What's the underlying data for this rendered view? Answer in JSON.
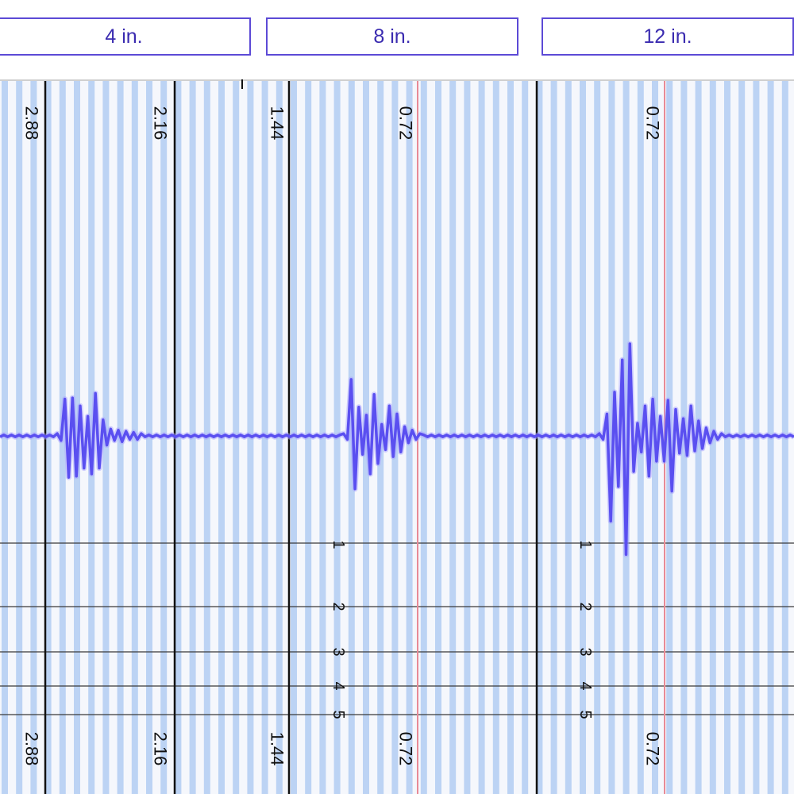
{
  "tabs": [
    {
      "label": "4 in."
    },
    {
      "label": "8 in."
    },
    {
      "label": "12 in."
    }
  ],
  "colors": {
    "tab_border": "#5c4ad6",
    "tab_text": "#3a2bb0",
    "stripe_blue": "#bcd3f4",
    "stripe_white": "#f5f7fc",
    "trace": "#5a4ff0",
    "frame_line": "#111111",
    "red_marker": "#e88a96"
  },
  "chart_data": {
    "type": "line",
    "title": "",
    "xlabel": "",
    "ylabel": "",
    "top_scale_labels": [
      "2.88",
      "2.16",
      "1.44",
      "0.72",
      "0.72"
    ],
    "bottom_scale_labels": [
      "2.88",
      "2.16",
      "1.44",
      "0.72",
      "0.72"
    ],
    "row_labels": [
      {
        "panel": 1,
        "labels": [
          "1",
          "2",
          "3",
          "4",
          "5"
        ]
      },
      {
        "panel": 2,
        "labels": [
          "1",
          "2",
          "3",
          "4",
          "5"
        ]
      }
    ],
    "series": [
      {
        "y": [
          0,
          0,
          0,
          0,
          0,
          0,
          0,
          0,
          0,
          0,
          0,
          0,
          0,
          0,
          0,
          0.2,
          -0.4,
          3.2,
          -3.6,
          3.3,
          -3.5,
          2.6,
          -2.8,
          1.7,
          -3.3,
          3.7,
          -2.8,
          1.4,
          -0.8,
          0.6,
          -0.4,
          0.5,
          -0.5,
          0.4,
          -0.3,
          0.3,
          -0.3,
          0.2,
          0,
          0,
          0,
          0,
          0,
          0,
          0,
          0,
          0,
          0,
          0,
          0,
          0,
          0,
          0,
          0,
          0,
          0,
          0,
          0,
          0,
          0,
          0,
          0,
          0,
          0,
          0,
          0,
          0,
          0,
          0,
          0,
          0,
          0,
          0,
          0,
          0,
          0,
          0,
          0,
          0,
          0,
          0,
          0,
          0,
          0,
          0,
          0,
          0,
          0,
          0,
          0,
          0.2,
          -0.3,
          4.9,
          -4.6,
          2.5,
          -1.6,
          1.8,
          -3.3,
          3.6,
          -2.4,
          1.0,
          -1.2,
          2.6,
          -1.8,
          1.9,
          -1.4,
          0.8,
          -0.6,
          0.5,
          -0.3,
          0.2,
          0,
          0,
          0,
          0,
          0,
          0,
          0,
          0,
          0,
          0,
          0,
          0,
          0,
          0,
          0,
          0,
          0,
          0,
          0,
          0,
          0,
          0,
          0,
          0,
          0,
          0,
          0,
          0,
          0,
          0,
          0,
          0,
          0,
          0,
          0,
          0,
          0,
          0,
          0,
          0,
          0,
          0,
          0,
          0,
          0,
          0,
          0.2,
          -0.3,
          1.9,
          -7.4,
          3.8,
          -4.4,
          6.6,
          -10.3,
          8.0,
          -3.1,
          1.1,
          -1.4,
          2.6,
          -3.5,
          3.2,
          -2.2,
          1.7,
          -2.2,
          3.1,
          -4.8,
          2.3,
          -1.5,
          1.5,
          -1.7,
          2.6,
          -1.3,
          1.3,
          -1.1,
          0.7,
          -0.6,
          0.4,
          -0.3,
          0.2,
          0,
          0,
          0,
          0,
          0,
          0,
          0,
          0,
          0,
          0,
          0,
          0,
          0,
          0,
          0,
          0,
          0,
          0,
          0
        ]
      }
    ]
  }
}
